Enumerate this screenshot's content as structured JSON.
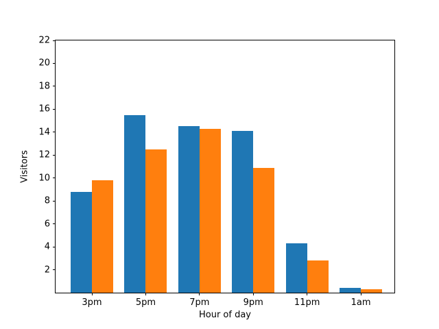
{
  "figure": {
    "background_color": "#ffffff",
    "text_color": "#000000"
  },
  "chart_data": {
    "type": "bar",
    "title": "",
    "xlabel": "Hour of day",
    "ylabel": "Visitors",
    "categories": [
      "3pm",
      "5pm",
      "7pm",
      "9pm",
      "11pm",
      "1am"
    ],
    "series": [
      {
        "name": "blue-series",
        "color": "#1f77b4",
        "values": [
          8.8,
          15.5,
          14.5,
          14.1,
          4.3,
          0.4
        ]
      },
      {
        "name": "orange-series",
        "color": "#ff7f0e",
        "values": [
          9.8,
          12.5,
          14.3,
          10.9,
          2.8,
          0.3
        ]
      }
    ],
    "ylim": [
      0,
      22
    ],
    "yticks": [
      2,
      4,
      6,
      8,
      10,
      12,
      14,
      16,
      18,
      20,
      22
    ],
    "grid": false,
    "legend": "none"
  }
}
